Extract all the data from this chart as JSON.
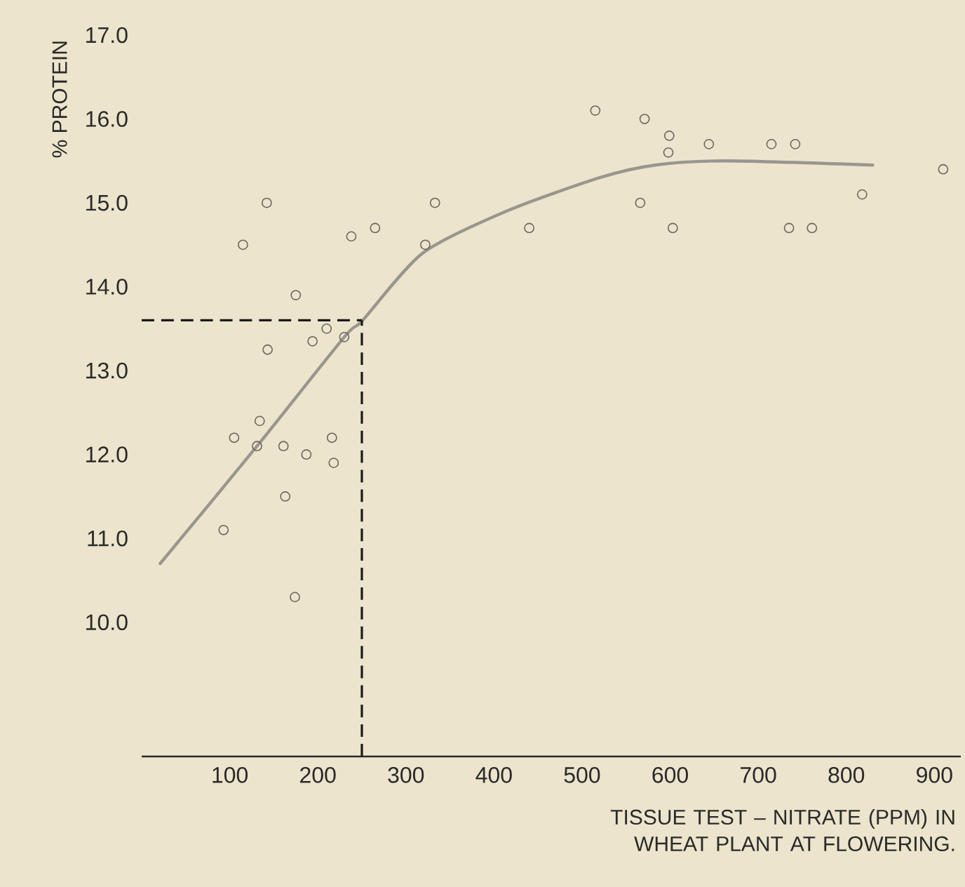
{
  "chart_data": {
    "type": "scatter",
    "xlabel": "TISSUE TEST – NITRATE (PPM) IN WHEAT PLANT AT FLOWERING.",
    "ylabel": "% PROTEIN",
    "xlim": [
      0,
      930
    ],
    "ylim": [
      8.4,
      17.0
    ],
    "xticks": [
      100,
      200,
      300,
      400,
      500,
      600,
      700,
      800,
      900
    ],
    "yticks": [
      {
        "value": 10,
        "label": "10.0"
      },
      {
        "value": 11,
        "label": "11.0"
      },
      {
        "value": 12,
        "label": "12.0"
      },
      {
        "value": 13,
        "label": "13.0"
      },
      {
        "value": 14,
        "label": "14.0"
      },
      {
        "value": 15,
        "label": "15.0"
      },
      {
        "value": 16,
        "label": "16.0"
      },
      {
        "value": 17,
        "label": "17.0"
      }
    ],
    "marker": "circle",
    "series": [
      {
        "color": "#6b6760",
        "x": [
          115,
          142,
          238,
          265,
          175,
          210,
          194,
          230,
          143,
          134,
          105,
          131,
          161,
          187,
          216,
          218,
          163,
          93,
          174,
          333,
          322,
          440,
          515,
          571,
          599,
          598,
          644,
          715,
          742,
          910,
          566,
          603,
          735,
          761,
          818
        ],
        "values": [
          14.5,
          15.0,
          14.6,
          14.7,
          13.9,
          13.5,
          13.35,
          13.4,
          13.25,
          12.4,
          12.2,
          12.1,
          12.1,
          12.0,
          12.2,
          11.9,
          11.5,
          11.1,
          10.3,
          15.0,
          14.5,
          14.7,
          16.1,
          16.0,
          15.8,
          15.6,
          15.7,
          15.7,
          15.7,
          15.4,
          15.0,
          14.7,
          14.7,
          14.7,
          15.1
        ]
      },
      {
        "type": "line",
        "color": "#9a968e",
        "marker": "none",
        "x": [
          21,
          131,
          230,
          251,
          319,
          414,
          520,
          583,
          662,
          830
        ],
        "values": [
          10.7,
          12.1,
          13.4,
          13.6,
          14.4,
          14.9,
          15.3,
          15.45,
          15.5,
          15.45
        ]
      }
    ],
    "ref_lines": [
      {
        "axis": "x",
        "value": 250,
        "color": "#1a1a1a",
        "line_style": "dashed"
      },
      {
        "axis": "y",
        "value": 13.6,
        "color": "#1a1a1a",
        "line_style": "dashed"
      }
    ]
  }
}
